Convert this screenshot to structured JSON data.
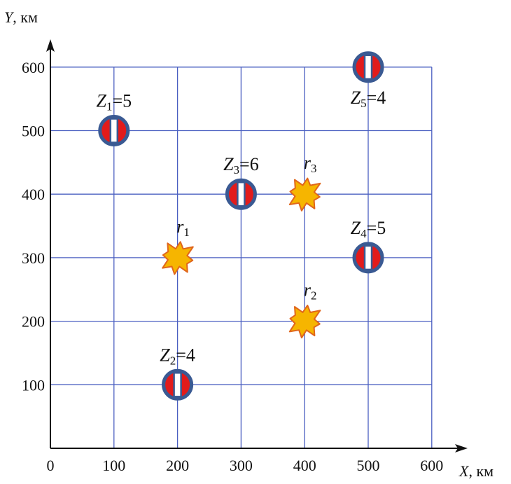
{
  "axes": {
    "x_label_var": "X",
    "x_label_unit": ", км",
    "y_label_var": "Y",
    "y_label_unit": ", км",
    "x_ticks": [
      "0",
      "100",
      "200",
      "300",
      "400",
      "500",
      "600"
    ],
    "y_ticks": [
      "100",
      "200",
      "300",
      "400",
      "500",
      "600"
    ]
  },
  "colors": {
    "grid": "#4a5fc1",
    "axis": "#111111",
    "station_ring": "#3a5a93",
    "station_fill": "#e21b1b",
    "station_bar": "#ffffff",
    "burst_fill": "#f6b500",
    "burst_stroke": "#e0661c"
  },
  "stations": [
    {
      "x": 100,
      "y": 500,
      "var": "Z",
      "sub": "1",
      "eq": "=5"
    },
    {
      "x": 200,
      "y": 100,
      "var": "Z",
      "sub": "2",
      "eq": "=4"
    },
    {
      "x": 300,
      "y": 400,
      "var": "Z",
      "sub": "3",
      "eq": "=6"
    },
    {
      "x": 500,
      "y": 300,
      "var": "Z",
      "sub": "4",
      "eq": "=5"
    },
    {
      "x": 500,
      "y": 600,
      "var": "Z",
      "sub": "5",
      "eq": "=4"
    }
  ],
  "targets": [
    {
      "x": 200,
      "y": 300,
      "var": "r",
      "sub": "1"
    },
    {
      "x": 400,
      "y": 200,
      "var": "r",
      "sub": "2"
    },
    {
      "x": 400,
      "y": 400,
      "var": "r",
      "sub": "3"
    }
  ]
}
